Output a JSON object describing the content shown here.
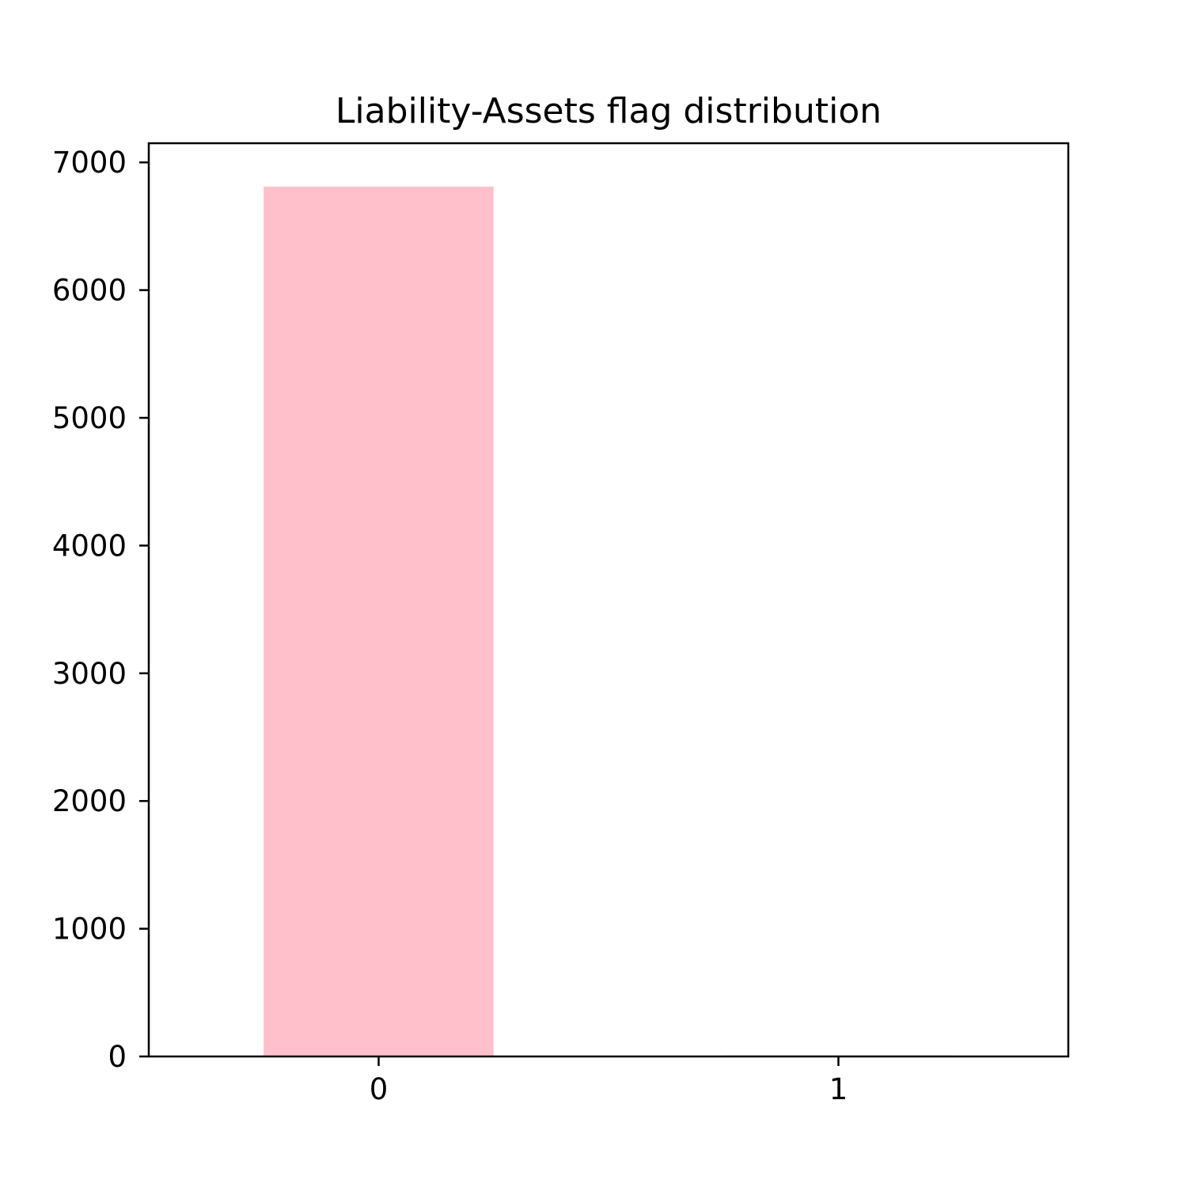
{
  "chart_data": {
    "type": "bar",
    "title": "Liability-Assets flag distribution",
    "xlabel": "",
    "ylabel": "",
    "categories": [
      "0",
      "1"
    ],
    "values": [
      6810,
      8
    ],
    "ylim": [
      0,
      7150
    ],
    "yticks": [
      0,
      1000,
      2000,
      3000,
      4000,
      5000,
      6000,
      7000
    ],
    "bar_color": "#ffc0cb",
    "grid": false,
    "legend": "none"
  }
}
